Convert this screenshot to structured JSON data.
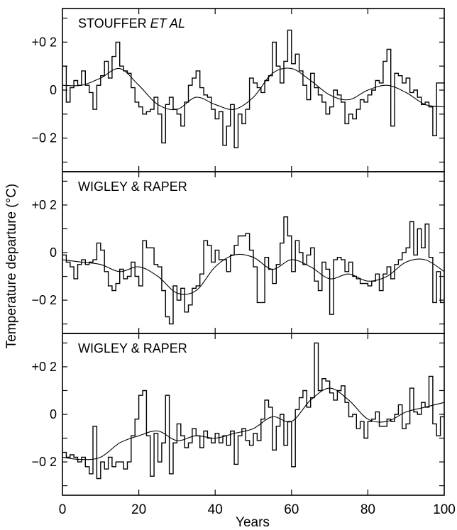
{
  "chart_data": {
    "type": "line",
    "xlabel": "Years",
    "ylabel": "Temperature departure (°C)",
    "xlim": [
      0,
      100
    ],
    "x_ticks": [
      "0",
      "20",
      "40",
      "60",
      "80",
      "100"
    ],
    "y_ticks": [
      "+0 2",
      "0",
      "−0 2"
    ],
    "grid": false,
    "panels": [
      {
        "title_main": "STOUFFER ",
        "title_italic": "ET AL",
        "ylim": [
          -0.34,
          0.34
        ],
        "annual_x": [
          0,
          1,
          2,
          3,
          4,
          5,
          6,
          7,
          8,
          9,
          10,
          11,
          12,
          13,
          14,
          15,
          16,
          17,
          18,
          19,
          20,
          21,
          22,
          23,
          24,
          25,
          26,
          27,
          28,
          29,
          30,
          31,
          32,
          33,
          34,
          35,
          36,
          37,
          38,
          39,
          40,
          41,
          42,
          43,
          44,
          45,
          46,
          47,
          48,
          49,
          50,
          51,
          52,
          53,
          54,
          55,
          56,
          57,
          58,
          59,
          60,
          61,
          62,
          63,
          64,
          65,
          66,
          67,
          68,
          69,
          70,
          71,
          72,
          73,
          74,
          75,
          76,
          77,
          78,
          79,
          80,
          81,
          82,
          83,
          84,
          85,
          86,
          87,
          88,
          89,
          90,
          91,
          92,
          93,
          94,
          95,
          96,
          97,
          98,
          99
        ],
        "annual_y": [
          0.1,
          -0.05,
          0.01,
          0.04,
          0.02,
          0.08,
          0.02,
          -0.01,
          -0.08,
          0.02,
          0.06,
          0.12,
          0.05,
          0.14,
          0.2,
          0.1,
          0.08,
          0.07,
          0.01,
          -0.05,
          -0.07,
          -0.1,
          -0.09,
          -0.08,
          -0.03,
          -0.1,
          -0.22,
          -0.06,
          -0.03,
          -0.08,
          -0.1,
          -0.15,
          -0.05,
          0.02,
          0.05,
          0.08,
          0.01,
          -0.02,
          -0.03,
          -0.08,
          -0.12,
          -0.09,
          -0.23,
          -0.15,
          -0.06,
          -0.24,
          -0.1,
          -0.14,
          -0.08,
          0.05,
          0.03,
          0.01,
          -0.01,
          0.04,
          0.06,
          0.2,
          0.1,
          0.03,
          0.12,
          0.25,
          0.11,
          0.15,
          0.08,
          0.02,
          -0.04,
          0.07,
          0.01,
          -0.02,
          -0.05,
          -0.1,
          -0.07,
          0.0,
          -0.02,
          -0.05,
          -0.14,
          -0.1,
          -0.12,
          -0.08,
          -0.04,
          -0.05,
          -0.02,
          0.0,
          0.04,
          0.03,
          0.12,
          0.17,
          -0.15,
          0.07,
          0.06,
          0.03,
          0.05,
          -0.01,
          0.0,
          -0.03,
          -0.06,
          -0.05,
          -0.07,
          -0.19,
          0.03,
          0.03
        ],
        "smooth_x": [
          0,
          5,
          10,
          15,
          20,
          25,
          30,
          35,
          40,
          45,
          50,
          55,
          60,
          65,
          70,
          75,
          80,
          85,
          90,
          95,
          100
        ],
        "smooth_y": [
          0.02,
          0.02,
          0.05,
          0.09,
          0.02,
          -0.06,
          -0.08,
          -0.03,
          -0.06,
          -0.08,
          -0.03,
          0.07,
          0.09,
          0.04,
          -0.02,
          -0.04,
          0.0,
          0.02,
          -0.01,
          -0.06,
          -0.07
        ]
      },
      {
        "title_main": "WIGLEY & RAPER",
        "title_italic": "",
        "ylim": [
          -0.34,
          0.34
        ],
        "annual_x": [
          0,
          1,
          2,
          3,
          4,
          5,
          6,
          7,
          8,
          9,
          10,
          11,
          12,
          13,
          14,
          15,
          16,
          17,
          18,
          19,
          20,
          21,
          22,
          23,
          24,
          25,
          26,
          27,
          28,
          29,
          30,
          31,
          32,
          33,
          34,
          35,
          36,
          37,
          38,
          39,
          40,
          41,
          42,
          43,
          44,
          45,
          46,
          47,
          48,
          49,
          50,
          51,
          52,
          53,
          54,
          55,
          56,
          57,
          58,
          59,
          60,
          61,
          62,
          63,
          64,
          65,
          66,
          67,
          68,
          69,
          70,
          71,
          72,
          73,
          74,
          75,
          76,
          77,
          78,
          79,
          80,
          81,
          82,
          83,
          84,
          85,
          86,
          87,
          88,
          89,
          90,
          91,
          92,
          93,
          94,
          95,
          96,
          97,
          98,
          99
        ],
        "annual_y": [
          -0.01,
          -0.04,
          -0.06,
          -0.11,
          -0.05,
          -0.03,
          -0.05,
          -0.04,
          -0.03,
          0.04,
          0.01,
          -0.08,
          -0.14,
          -0.16,
          -0.13,
          -0.07,
          -0.11,
          -0.1,
          -0.04,
          -0.1,
          -0.14,
          0.05,
          0.02,
          0.02,
          -0.05,
          -0.06,
          -0.16,
          -0.27,
          -0.3,
          -0.14,
          -0.2,
          -0.15,
          -0.25,
          -0.22,
          -0.15,
          -0.14,
          -0.09,
          0.05,
          0.03,
          -0.04,
          0.01,
          -0.03,
          -0.03,
          -0.08,
          -0.01,
          0.03,
          0.07,
          0.07,
          0.08,
          0.01,
          -0.06,
          -0.21,
          -0.21,
          -0.02,
          -0.07,
          -0.13,
          -0.05,
          0.04,
          0.15,
          0.07,
          -0.08,
          0.05,
          0.0,
          -0.05,
          -0.01,
          0.02,
          -0.12,
          -0.16,
          -0.04,
          -0.07,
          -0.26,
          -0.03,
          -0.02,
          -0.03,
          -0.08,
          -0.04,
          -0.1,
          -0.11,
          -0.13,
          -0.13,
          -0.14,
          -0.12,
          -0.09,
          -0.16,
          -0.09,
          -0.06,
          -0.11,
          -0.05,
          -0.03,
          0.0,
          0.02,
          0.13,
          -0.01,
          0.1,
          0.02,
          0.12,
          -0.02,
          -0.21,
          -0.08,
          -0.21
        ],
        "smooth_x": [
          0,
          5,
          10,
          15,
          20,
          25,
          30,
          35,
          40,
          45,
          50,
          55,
          60,
          65,
          70,
          75,
          80,
          85,
          90,
          95,
          100
        ],
        "smooth_y": [
          -0.03,
          -0.04,
          -0.05,
          -0.08,
          -0.06,
          -0.1,
          -0.17,
          -0.16,
          -0.06,
          -0.01,
          -0.02,
          -0.07,
          -0.03,
          -0.06,
          -0.11,
          -0.09,
          -0.12,
          -0.1,
          -0.04,
          -0.03,
          -0.08
        ]
      },
      {
        "title_main": "WIGLEY & RAPER",
        "title_italic": "",
        "ylim": [
          -0.34,
          0.34
        ],
        "annual_x": [
          0,
          1,
          2,
          3,
          4,
          5,
          6,
          7,
          8,
          9,
          10,
          11,
          12,
          13,
          14,
          15,
          16,
          17,
          18,
          19,
          20,
          21,
          22,
          23,
          24,
          25,
          26,
          27,
          28,
          29,
          30,
          31,
          32,
          33,
          34,
          35,
          36,
          37,
          38,
          39,
          40,
          41,
          42,
          43,
          44,
          45,
          46,
          47,
          48,
          49,
          50,
          51,
          52,
          53,
          54,
          55,
          56,
          57,
          58,
          59,
          60,
          61,
          62,
          63,
          64,
          65,
          66,
          67,
          68,
          69,
          70,
          71,
          72,
          73,
          74,
          75,
          76,
          77,
          78,
          79,
          80,
          81,
          82,
          83,
          84,
          85,
          86,
          87,
          88,
          89,
          90,
          91,
          92,
          93,
          94,
          95,
          96,
          97,
          98,
          99
        ],
        "annual_y": [
          -0.16,
          -0.18,
          -0.17,
          -0.18,
          -0.2,
          -0.18,
          -0.22,
          -0.25,
          -0.05,
          -0.27,
          -0.2,
          -0.23,
          -0.18,
          -0.22,
          -0.2,
          -0.2,
          -0.23,
          -0.2,
          -0.09,
          -0.02,
          0.08,
          0.1,
          -0.09,
          -0.26,
          -0.08,
          -0.2,
          -0.12,
          0.08,
          -0.25,
          -0.12,
          -0.04,
          -0.09,
          -0.14,
          -0.12,
          -0.06,
          -0.09,
          -0.14,
          -0.07,
          -0.1,
          -0.12,
          -0.08,
          -0.12,
          -0.09,
          -0.13,
          -0.07,
          -0.21,
          -0.09,
          -0.06,
          -0.11,
          -0.13,
          -0.08,
          -0.11,
          -0.02,
          0.06,
          0.03,
          -0.15,
          -0.05,
          0.0,
          -0.13,
          -0.03,
          -0.22,
          0.02,
          0.07,
          0.1,
          0.03,
          0.07,
          0.3,
          0.1,
          0.15,
          0.14,
          0.09,
          0.06,
          0.1,
          0.12,
          0.05,
          -0.01,
          0.0,
          -0.06,
          -0.03,
          -0.1,
          -0.03,
          -0.02,
          0.01,
          -0.05,
          -0.05,
          -0.02,
          -0.03,
          0.0,
          0.04,
          -0.06,
          -0.04,
          0.11,
          0.01,
          0.0,
          0.05,
          0.03,
          0.16,
          -0.04,
          -0.09,
          -0.01
        ],
        "smooth_x": [
          0,
          5,
          10,
          15,
          20,
          25,
          30,
          35,
          40,
          45,
          50,
          55,
          60,
          65,
          70,
          75,
          80,
          85,
          90,
          95,
          100
        ],
        "smooth_y": [
          -0.18,
          -0.19,
          -0.18,
          -0.12,
          -0.09,
          -0.07,
          -0.11,
          -0.09,
          -0.1,
          -0.08,
          -0.06,
          -0.01,
          -0.03,
          0.06,
          0.11,
          0.06,
          -0.02,
          -0.03,
          0.01,
          0.03,
          0.05
        ]
      }
    ]
  }
}
